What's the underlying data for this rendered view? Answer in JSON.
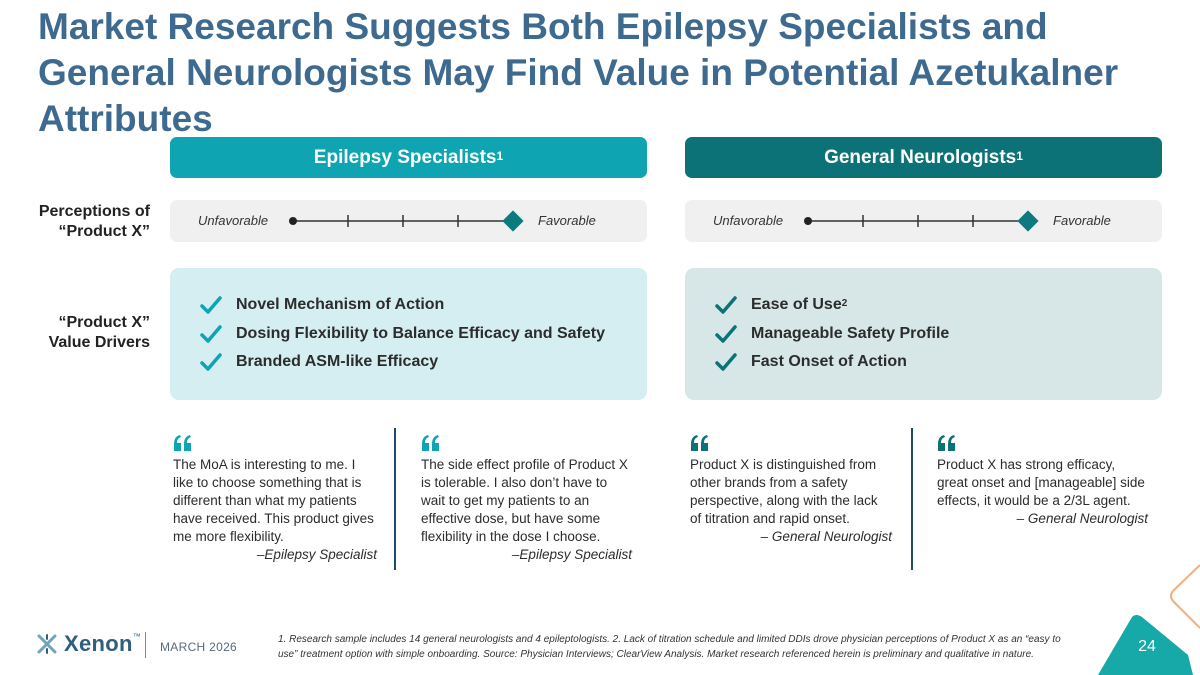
{
  "title": "Market Research Suggests Both Epilepsy Specialists and General Neurologists May Find Value in Potential Azetukalner Attributes",
  "columns": {
    "left": {
      "header": "Epilepsy Specialists",
      "sup": "1"
    },
    "right": {
      "header": "General Neurologists",
      "sup": "1"
    }
  },
  "row_labels": {
    "perceptions_line1": "Perceptions of",
    "perceptions_line2": "“Product X”",
    "value_line1": "“Product X”",
    "value_line2": "Value Drivers"
  },
  "scale": {
    "low_label": "Unfavorable",
    "high_label": "Favorable",
    "left_level": 1.0,
    "right_level": 1.0
  },
  "value_drivers": {
    "left": [
      {
        "text": "Novel Mechanism of Action",
        "sup": ""
      },
      {
        "text": "Dosing Flexibility to Balance Efficacy and Safety",
        "sup": ""
      },
      {
        "text": "Branded ASM-like Efficacy",
        "sup": ""
      }
    ],
    "right": [
      {
        "text": "Ease of Use",
        "sup": "2"
      },
      {
        "text": "Manageable Safety Profile",
        "sup": ""
      },
      {
        "text": "Fast Onset of Action",
        "sup": ""
      }
    ]
  },
  "quotes": [
    {
      "text": "The MoA is interesting to me. I like to choose something that is different than what my patients have received. This product gives me more flexibility.",
      "attribution": "–Epilepsy Specialist"
    },
    {
      "text": "The side effect profile of Product X is tolerable. I also don’t have to wait to get my patients to an effective dose, but have some flexibility in the dose I choose.",
      "attribution": "–Epilepsy Specialist"
    },
    {
      "text": "Product X is distinguished from other brands from a safety perspective, along with the lack of titration and rapid onset.",
      "attribution": "– General Neurologist"
    },
    {
      "text": "Product X has strong efficacy, great onset and [manageable] side effects, it would be a 2/3L agent.",
      "attribution": "– General Neurologist"
    }
  ],
  "footer": {
    "brand": "Xenon",
    "tm": "™",
    "date": "MARCH 2026",
    "footnote": "1. Research sample includes 14 general neurologists and 4 epileptologists. 2. Lack of titration schedule and limited DDIs drove physician perceptions of Product X as an “easy to use” treatment option with simple onboarding. Source: Physician Interviews; ClearView Analysis. Market research referenced herein is preliminary and qualitative in nature.",
    "page_number": "24"
  },
  "colors": {
    "title": "#3d6a8e",
    "left_header": "#0ea4b1",
    "right_header": "#0d7277",
    "check": "#0ea4b1",
    "check_right": "#0d7277",
    "quote_mark": "#0ea4b1",
    "page_badge": "#17a8a8"
  },
  "icons": {
    "check": "check-icon",
    "quote": "quote-icon",
    "logo": "xenon-logo-icon"
  }
}
